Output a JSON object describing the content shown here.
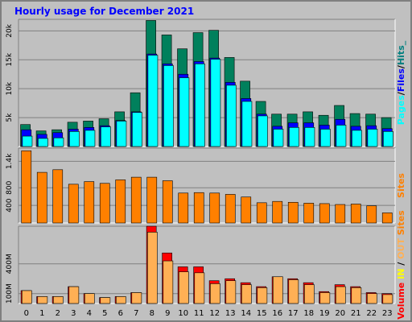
{
  "chart_data": {
    "title": "Hourly usage for December 2021",
    "type": "bar",
    "categories": [
      "0",
      "1",
      "2",
      "3",
      "4",
      "5",
      "6",
      "7",
      "8",
      "9",
      "10",
      "11",
      "12",
      "13",
      "14",
      "15",
      "16",
      "17",
      "18",
      "19",
      "20",
      "21",
      "22",
      "23"
    ],
    "panels": [
      {
        "id": "requests",
        "ylim": [
          0,
          22000
        ],
        "yticks": [
          "5k",
          "10k",
          "15k",
          "20k"
        ],
        "ytick_values": [
          5000,
          10000,
          15000,
          20000
        ],
        "side_label": [
          {
            "text": "Pages",
            "color": "#00ffff"
          },
          {
            "text": "/",
            "color": "#000000"
          },
          {
            "text": "Files",
            "color": "#0000ff"
          },
          {
            "text": "/",
            "color": "#000000"
          },
          {
            "text": "Hits",
            "color": "#008080"
          },
          {
            "text": "_",
            "color": "#008080"
          }
        ],
        "series": [
          {
            "name": "Hits",
            "color": "#00805c",
            "values": [
              3800,
              2700,
              2900,
              4200,
              4400,
              4800,
              6000,
              9300,
              21800,
              19300,
              16900,
              19700,
              20100,
              15400,
              11300,
              7800,
              5600,
              5600,
              6000,
              5400,
              7100,
              5700,
              5600,
              5000
            ]
          },
          {
            "name": "Files",
            "color": "#0000ff",
            "values": [
              2900,
              2100,
              2400,
              3000,
              3300,
              3600,
              4500,
              6000,
              16000,
              14300,
              12500,
              14700,
              15300,
              11100,
              8300,
              5600,
              3500,
              4100,
              4100,
              3700,
              4700,
              3500,
              3600,
              3100
            ]
          },
          {
            "name": "Pages",
            "color": "#00ffff",
            "values": [
              1800,
              1400,
              1500,
              2600,
              2800,
              3400,
              4400,
              5900,
              15800,
              14000,
              11900,
              14300,
              15100,
              10600,
              7800,
              5300,
              3000,
              3300,
              3300,
              3000,
              3700,
              2800,
              3000,
              2600
            ]
          }
        ]
      },
      {
        "id": "sites",
        "ylim": [
          0,
          1700
        ],
        "yticks": [
          "400",
          "800",
          "1.4k"
        ],
        "ytick_values": [
          400,
          800,
          1400
        ],
        "side_label": [
          {
            "text": "Sites",
            "color": "#ff8000"
          }
        ],
        "series": [
          {
            "name": "Sites",
            "color": "#ff8000",
            "values": [
              1640,
              1150,
              1210,
              880,
              940,
              900,
              980,
              1040,
              1040,
              960,
              680,
              690,
              680,
              650,
              590,
              460,
              490,
              470,
              450,
              440,
              420,
              430,
              390,
              230
            ]
          }
        ]
      },
      {
        "id": "volume",
        "ylim": [
          0,
          780
        ],
        "yticks": [
          "100M",
          "400M"
        ],
        "ytick_values": [
          100,
          400
        ],
        "side_label": [
          {
            "text": "Volume",
            "color": "#ff0000"
          },
          {
            "text": "  ",
            "color": "#000000"
          },
          {
            "text": "IN",
            "color": "#ffff00"
          },
          {
            "text": " / ",
            "color": "#000000"
          },
          {
            "text": "OUT",
            "color": "#ffb055"
          },
          {
            "text": "  ",
            "color": "#000000"
          },
          {
            "text": "Sites",
            "color": "#ff8000"
          }
        ],
        "series": [
          {
            "name": "Volume",
            "color": "#ff0000",
            "values": [
              130,
              70,
              70,
              170,
              100,
              60,
              70,
              110,
              780,
              510,
              370,
              370,
              230,
              250,
              210,
              170,
              270,
              250,
              210,
              120,
              190,
              170,
              110,
              100
            ]
          },
          {
            "name": "OUT",
            "color": "#ffb055",
            "values": [
              130,
              70,
              70,
              170,
              100,
              60,
              70,
              110,
              720,
              430,
              320,
              310,
              200,
              230,
              190,
              160,
              270,
              240,
              190,
              110,
              170,
              160,
              100,
              90
            ]
          }
        ]
      }
    ]
  }
}
